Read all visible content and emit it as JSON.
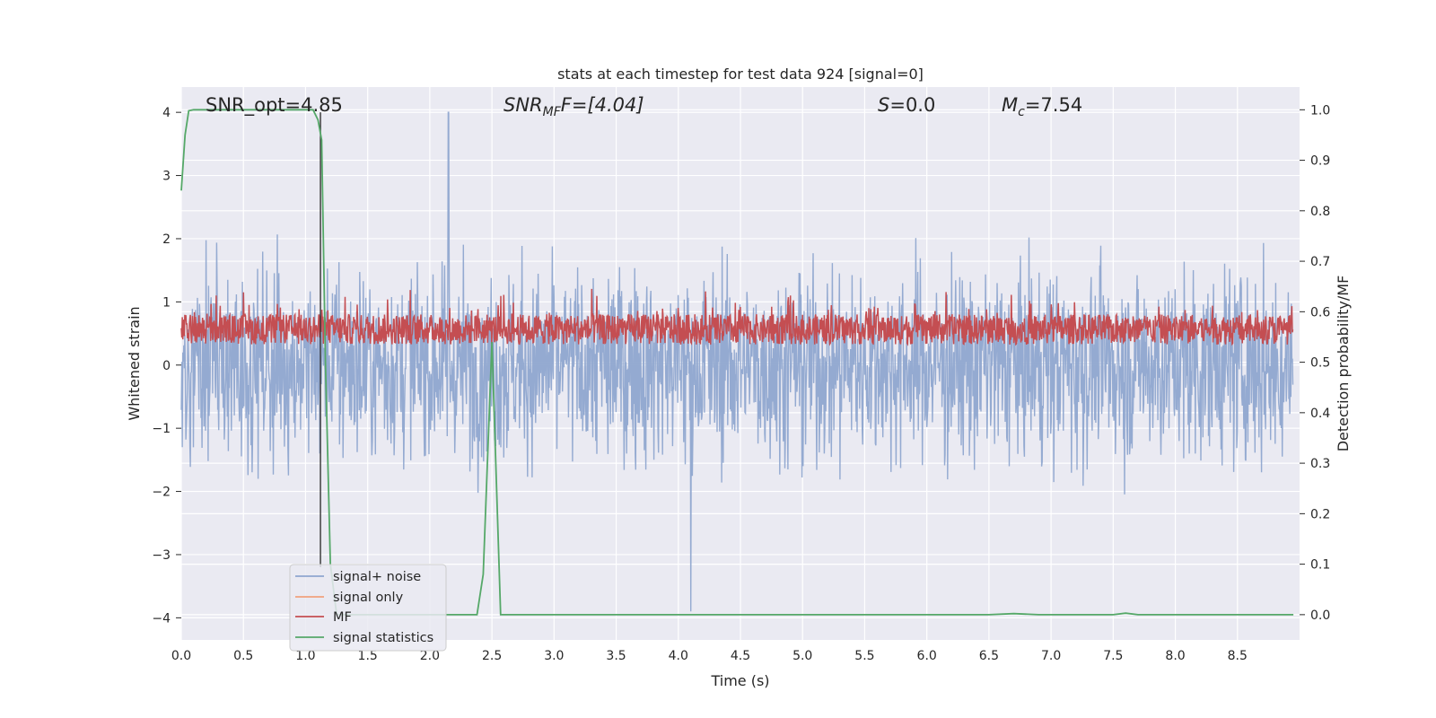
{
  "chart_data": {
    "type": "line",
    "title": "stats at each timestep for test data 924 [signal=0]",
    "xlabel": "Time (s)",
    "ylabel_left": "Whitened strain",
    "ylabel_right": "Detection probability/MF",
    "xlim": [
      0.0,
      9.0
    ],
    "ylim_left": [
      -4.35,
      4.4
    ],
    "ylim_right": [
      -0.05,
      1.045
    ],
    "xticks": [
      "0.0",
      "0.5",
      "1.0",
      "1.5",
      "2.0",
      "2.5",
      "3.0",
      "3.5",
      "4.0",
      "4.5",
      "5.0",
      "5.5",
      "6.0",
      "6.5",
      "7.0",
      "7.5",
      "8.0",
      "8.5"
    ],
    "yticks_left": [
      "4",
      "3",
      "2",
      "1",
      "0",
      "−1",
      "−2",
      "−3",
      "−4"
    ],
    "yticks_right": [
      "1.0",
      "0.9",
      "0.8",
      "0.7",
      "0.6",
      "0.5",
      "0.4",
      "0.3",
      "0.2",
      "0.1",
      "0.0"
    ],
    "grid": true,
    "legend_position": "lower-left",
    "annotations": {
      "snr_opt": "SNR_opt=4.85",
      "snr_mf_main": "SNR",
      "snr_mf_sub": "MF",
      "snr_mf_rest": "F=[4.04]",
      "s_main": "S",
      "s_rest": "=0.0",
      "mc_main": "M",
      "mc_sub": "c",
      "mc_rest": "=7.54"
    },
    "vline_x": 1.12,
    "series": [
      {
        "name": "signal+ noise",
        "color": "#8fa6cf",
        "axis": "left",
        "description_values": {
          "approx_range": [
            -3.9,
            4.0
          ],
          "peak_positive": {
            "x": 2.15,
            "y": 4.0
          },
          "peak_negative": {
            "x": 4.1,
            "y": -3.9
          }
        }
      },
      {
        "name": "signal only",
        "color": "#f0a17e",
        "axis": "left",
        "values_note_zero": 0
      },
      {
        "name": "MF",
        "color": "#c44e52",
        "axis": "right",
        "approx_range": [
          0.5,
          0.65
        ]
      },
      {
        "name": "signal statistics",
        "color": "#55a868",
        "axis": "right",
        "x": [
          0.0,
          0.03,
          0.06,
          0.1,
          0.15,
          0.3,
          0.5,
          0.8,
          1.0,
          1.06,
          1.1,
          1.13,
          1.16,
          1.2,
          1.25,
          1.3,
          1.5,
          2.0,
          2.3,
          2.38,
          2.43,
          2.5,
          2.57,
          2.65,
          3.0,
          4.0,
          5.0,
          6.0,
          6.5,
          6.7,
          6.9,
          7.5,
          7.6,
          7.7,
          8.0,
          8.5,
          8.95
        ],
        "y": [
          0.84,
          0.95,
          0.998,
          1.0,
          1.0,
          1.0,
          1.0,
          1.0,
          1.0,
          1.0,
          0.98,
          0.94,
          0.5,
          0.1,
          0.0,
          0.0,
          0.0,
          0.0,
          0.0,
          0.0,
          0.08,
          0.54,
          0.0,
          0.0,
          0.0,
          0.0,
          0.0,
          0.0,
          0.0,
          0.002,
          0.0,
          0.0,
          0.003,
          0.0,
          0.0,
          0.0,
          0.0
        ]
      }
    ]
  }
}
